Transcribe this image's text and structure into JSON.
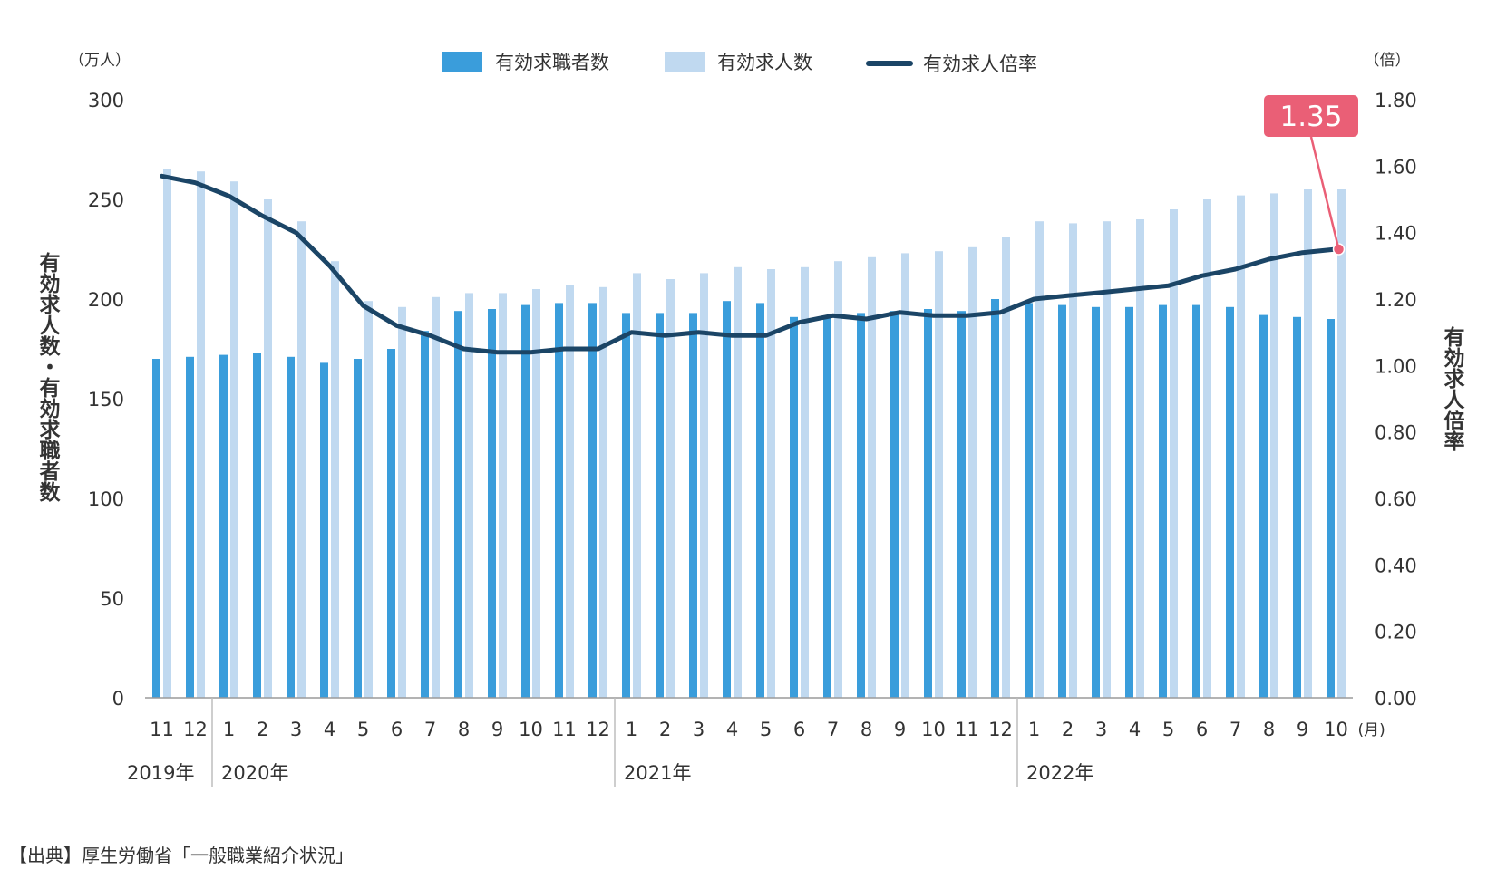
{
  "chart_data": {
    "type": "bar+line",
    "units": {
      "left": "（万人）",
      "right": "（倍）",
      "month": "(月)"
    },
    "legend": [
      "有効求職者数",
      "有効求人数",
      "有効求人倍率"
    ],
    "ylabel_left": "有効求人数・有効求職者数",
    "ylabel_right": "有効求人倍率",
    "ylim_left": [
      0,
      300
    ],
    "ylim_right": [
      0.0,
      1.8
    ],
    "y_ticks_left": [
      "0",
      "50",
      "100",
      "150",
      "200",
      "250",
      "300"
    ],
    "y_ticks_right": [
      "0.00",
      "0.20",
      "0.40",
      "0.60",
      "0.80",
      "1.00",
      "1.20",
      "1.40",
      "1.60",
      "1.80"
    ],
    "x": [
      "11",
      "12",
      "1",
      "2",
      "3",
      "4",
      "5",
      "6",
      "7",
      "8",
      "9",
      "10",
      "11",
      "12",
      "1",
      "2",
      "3",
      "4",
      "5",
      "6",
      "7",
      "8",
      "9",
      "10",
      "11",
      "12",
      "1",
      "2",
      "3",
      "4",
      "5",
      "6",
      "7",
      "8",
      "9",
      "10"
    ],
    "years": [
      {
        "label": "2019年",
        "start": 0,
        "end": 1
      },
      {
        "label": "2020年",
        "start": 2,
        "end": 13
      },
      {
        "label": "2021年",
        "start": 14,
        "end": 25
      },
      {
        "label": "2022年",
        "start": 26,
        "end": 35
      }
    ],
    "series": [
      {
        "name": "有効求職者数",
        "kind": "bar",
        "color": "#3a9ddb",
        "values": [
          170,
          171,
          172,
          173,
          171,
          168,
          170,
          175,
          184,
          194,
          195,
          197,
          198,
          198,
          193,
          193,
          193,
          199,
          198,
          191,
          191,
          193,
          194,
          195,
          194,
          200,
          198,
          197,
          196,
          196,
          197,
          197,
          196,
          192,
          191,
          190
        ]
      },
      {
        "name": "有効求人数",
        "kind": "bar",
        "color": "#c0d9f0",
        "values": [
          265,
          264,
          259,
          250,
          239,
          219,
          199,
          196,
          201,
          203,
          203,
          205,
          207,
          206,
          213,
          210,
          213,
          216,
          215,
          216,
          219,
          221,
          223,
          224,
          226,
          231,
          239,
          238,
          239,
          240,
          245,
          250,
          252,
          253,
          255,
          255
        ]
      },
      {
        "name": "有効求人倍率",
        "kind": "line",
        "color": "#1b4566",
        "values": [
          1.57,
          1.55,
          1.51,
          1.45,
          1.4,
          1.3,
          1.18,
          1.12,
          1.09,
          1.05,
          1.04,
          1.04,
          1.05,
          1.05,
          1.1,
          1.09,
          1.1,
          1.09,
          1.09,
          1.13,
          1.15,
          1.14,
          1.16,
          1.15,
          1.15,
          1.16,
          1.2,
          1.21,
          1.22,
          1.23,
          1.24,
          1.27,
          1.29,
          1.32,
          1.34,
          1.35
        ]
      }
    ],
    "annotation": {
      "text": "1.35",
      "color": "#ea5f76"
    }
  },
  "source_note": "【出典】厚生労働省「一般職業紹介状況」"
}
